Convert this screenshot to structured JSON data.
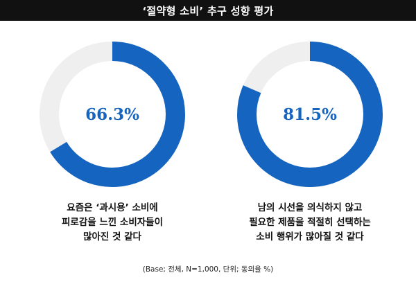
{
  "title": "‘절약형 소비’ 추구 성향 평가",
  "colors": {
    "accent": "#1565c0",
    "track": "#efefef",
    "title_bg": "#111111"
  },
  "chart_data": [
    {
      "type": "pie",
      "value": 66.3,
      "value_label": "66.3%",
      "unit": "%",
      "caption_lines": [
        "요즘은 ‘과시용’ 소비에",
        "피로감을 느낀 소비자들이",
        "많아진 것 같다"
      ]
    },
    {
      "type": "pie",
      "value": 81.5,
      "value_label": "81.5%",
      "unit": "%",
      "caption_lines": [
        "남의 시선을 의식하지 않고",
        "필요한 제품을 적절히 선택하는",
        "소비 행위가 많아질 것 같다"
      ]
    }
  ],
  "footnote": "(Base; 전체, N=1,000, 단위; 동의율 %)"
}
